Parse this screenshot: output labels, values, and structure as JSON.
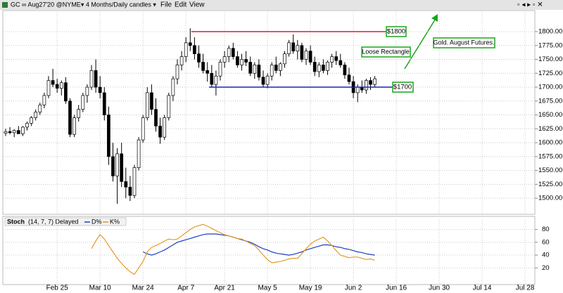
{
  "menu": [
    "File",
    "Edit",
    "View"
  ],
  "chart_data": [
    {
      "type": "candlestick",
      "title": "GC ∞ Aug27'20 @NYME▾ 4 Months/Daily candles ▾",
      "categories": [
        null,
        null,
        null,
        null,
        null,
        null,
        null,
        null,
        null,
        null,
        null,
        null,
        "Feb 25",
        null,
        null,
        null,
        null,
        null,
        null,
        null,
        null,
        null,
        "Mar 10",
        null,
        null,
        null,
        null,
        null,
        null,
        null,
        null,
        null,
        "Mar 24",
        null,
        null,
        null,
        null,
        null,
        null,
        null,
        null,
        null,
        "Apr 7",
        null,
        null,
        null,
        null,
        null,
        null,
        null,
        null,
        "Apr 21",
        null,
        null,
        null,
        null,
        null,
        null,
        null,
        null,
        null,
        "May 5",
        null,
        null,
        null,
        null,
        null,
        null,
        null,
        null,
        null,
        "May 19",
        null,
        null,
        null,
        null,
        null,
        null,
        null,
        null,
        null,
        "Jun 2",
        null,
        null,
        null,
        null,
        null,
        null,
        null,
        null,
        null,
        "Jun 16",
        null,
        null,
        null,
        null,
        null,
        null,
        null,
        null,
        null,
        "Jun 30",
        null,
        null,
        null,
        null,
        null,
        null,
        null,
        null,
        null,
        "Jul 14",
        null,
        null,
        null,
        null,
        null,
        null,
        null,
        null,
        null,
        "Jul 28",
        null,
        null
      ],
      "open": [
        1617,
        1620,
        1618,
        1622,
        1616,
        1628,
        1635,
        1645,
        1655,
        1668,
        1685,
        1712,
        1705,
        1698,
        1708,
        1675,
        1615,
        1645,
        1660,
        1685,
        1700,
        1730,
        1700,
        1690,
        1650,
        1575,
        1540,
        1580,
        1530,
        1520,
        1505,
        1555,
        1605,
        1645,
        1690,
        1660,
        1630,
        1610,
        1645,
        1685,
        1715,
        1740,
        1755,
        1780,
        1775,
        1760,
        1745,
        1730,
        1725,
        1705,
        1720,
        1745,
        1755,
        1770,
        1755,
        1740,
        1750,
        1745,
        1725,
        1740,
        1718,
        1705,
        1720,
        1740,
        1730,
        1742,
        1760,
        1780,
        1765,
        1775,
        1750,
        1765,
        1745,
        1728,
        1740,
        1730,
        1745,
        1755,
        1748,
        1740,
        1722,
        1710,
        1690,
        1700,
        1695,
        1712,
        1705,
        null,
        null,
        null,
        null,
        null,
        null,
        null,
        null,
        null,
        null,
        null,
        null,
        null,
        null,
        null,
        null,
        null,
        null,
        null,
        null,
        null,
        null,
        null,
        null,
        null,
        null,
        null,
        null,
        null,
        null,
        null,
        null,
        null,
        null,
        null,
        null,
        null
      ],
      "high": [
        1625,
        1628,
        1624,
        1630,
        1630,
        1638,
        1648,
        1660,
        1672,
        1690,
        1720,
        1733,
        1715,
        1712,
        1718,
        1680,
        1650,
        1668,
        1690,
        1705,
        1740,
        1750,
        1720,
        1700,
        1665,
        1600,
        1590,
        1600,
        1555,
        1540,
        1560,
        1610,
        1650,
        1700,
        1705,
        1680,
        1645,
        1650,
        1690,
        1720,
        1750,
        1765,
        1790,
        1806,
        1790,
        1775,
        1760,
        1745,
        1740,
        1730,
        1750,
        1765,
        1775,
        1780,
        1765,
        1760,
        1765,
        1755,
        1745,
        1750,
        1730,
        1725,
        1745,
        1755,
        1745,
        1765,
        1785,
        1795,
        1785,
        1780,
        1770,
        1775,
        1755,
        1745,
        1750,
        1748,
        1760,
        1765,
        1760,
        1745,
        1735,
        1720,
        1705,
        1712,
        1715,
        1718,
        1720,
        null,
        null,
        null,
        null,
        null,
        null,
        null,
        null,
        null,
        null,
        null,
        null,
        null,
        null,
        null,
        null,
        null,
        null,
        null,
        null,
        null,
        null,
        null,
        null,
        null,
        null,
        null,
        null,
        null,
        null,
        null,
        null,
        null,
        null,
        null,
        null,
        null
      ],
      "low": [
        1612,
        1615,
        1610,
        1616,
        1612,
        1622,
        1630,
        1640,
        1650,
        1662,
        1680,
        1700,
        1690,
        1685,
        1670,
        1610,
        1610,
        1638,
        1655,
        1672,
        1695,
        1690,
        1680,
        1640,
        1560,
        1530,
        1490,
        1520,
        1500,
        1495,
        1500,
        1550,
        1600,
        1640,
        1650,
        1620,
        1598,
        1605,
        1640,
        1675,
        1705,
        1730,
        1745,
        1765,
        1750,
        1735,
        1725,
        1710,
        1700,
        1685,
        1712,
        1735,
        1745,
        1750,
        1735,
        1730,
        1738,
        1720,
        1715,
        1712,
        1700,
        1698,
        1712,
        1725,
        1720,
        1735,
        1755,
        1760,
        1750,
        1745,
        1740,
        1740,
        1720,
        1718,
        1725,
        1722,
        1735,
        1740,
        1735,
        1715,
        1705,
        1680,
        1673,
        1690,
        1688,
        1695,
        1700,
        null,
        null,
        null,
        null,
        null,
        null,
        null,
        null,
        null,
        null,
        null,
        null,
        null,
        null,
        null,
        null,
        null,
        null,
        null,
        null,
        null,
        null,
        null,
        null,
        null,
        null,
        null,
        null,
        null,
        null,
        null,
        null,
        null,
        null,
        null,
        null,
        null
      ],
      "close": [
        1620,
        1618,
        1622,
        1616,
        1628,
        1635,
        1645,
        1655,
        1668,
        1685,
        1712,
        1705,
        1698,
        1708,
        1675,
        1615,
        1645,
        1660,
        1685,
        1700,
        1730,
        1700,
        1690,
        1650,
        1575,
        1540,
        1580,
        1530,
        1520,
        1505,
        1555,
        1605,
        1645,
        1690,
        1660,
        1630,
        1610,
        1645,
        1685,
        1715,
        1740,
        1755,
        1780,
        1775,
        1760,
        1745,
        1730,
        1725,
        1705,
        1720,
        1745,
        1755,
        1770,
        1755,
        1740,
        1750,
        1745,
        1725,
        1740,
        1718,
        1705,
        1720,
        1740,
        1730,
        1742,
        1760,
        1780,
        1765,
        1775,
        1750,
        1765,
        1745,
        1728,
        1740,
        1730,
        1745,
        1755,
        1748,
        1740,
        1722,
        1710,
        1690,
        1700,
        1695,
        1712,
        1705,
        1715,
        null,
        null,
        null,
        null,
        null,
        null,
        null,
        null,
        null,
        null,
        null,
        null,
        null,
        null,
        null,
        null,
        null,
        null,
        null,
        null,
        null,
        null,
        null,
        null,
        null,
        null,
        null,
        null,
        null,
        null,
        null,
        null,
        null,
        null,
        null,
        null,
        null
      ],
      "ylim": [
        1471,
        1838
      ],
      "yticks": [
        {
          "value": 1500,
          "label": "1500.00"
        },
        {
          "value": 1525,
          "label": "1525.00"
        },
        {
          "value": 1550,
          "label": "1550.00"
        },
        {
          "value": 1575,
          "label": "1575.00"
        },
        {
          "value": 1600,
          "label": "1600.00"
        },
        {
          "value": 1625,
          "label": "1625.00"
        },
        {
          "value": 1650,
          "label": "1650.00"
        },
        {
          "value": 1675,
          "label": "1675.00"
        },
        {
          "value": 1700,
          "label": "1700.00"
        },
        {
          "value": 1725,
          "label": "1725.00"
        },
        {
          "value": 1750,
          "label": "1750.00"
        },
        {
          "value": 1775,
          "label": "1775.00"
        },
        {
          "value": 1800,
          "label": "1800.00"
        }
      ],
      "grid": true,
      "annotations": [
        {
          "text": "$1800",
          "value": 1800,
          "color": "#d0203a"
        },
        {
          "text": "$1700",
          "value": 1700,
          "color": "#1f1fbf"
        },
        {
          "text": "Loose Rectangle"
        },
        {
          "text": "Gold. August Futures."
        }
      ]
    },
    {
      "type": "line",
      "title": "Stoch",
      "subtitle": "(14, 7, 7) Delayed",
      "series": [
        {
          "name": "D%",
          "color": "#1f3fbf",
          "values": [
            null,
            null,
            null,
            null,
            null,
            null,
            null,
            null,
            null,
            null,
            null,
            null,
            null,
            null,
            null,
            null,
            null,
            null,
            null,
            null,
            null,
            null,
            null,
            null,
            null,
            null,
            null,
            null,
            null,
            null,
            null,
            null,
            45,
            42,
            40,
            42,
            45,
            48,
            52,
            56,
            60,
            62,
            64,
            66,
            68,
            70,
            72,
            73,
            73,
            73,
            72,
            71,
            70,
            68,
            66,
            64,
            62,
            60,
            57,
            53,
            50,
            48,
            45,
            43,
            42,
            41,
            40,
            41,
            43,
            45,
            48,
            50,
            52,
            54,
            56,
            56,
            55,
            53,
            52,
            50,
            49,
            47,
            45,
            44,
            42,
            41,
            40,
            null,
            null,
            null,
            null,
            null,
            null,
            null,
            null,
            null,
            null,
            null,
            null,
            null,
            null,
            null,
            null,
            null,
            null,
            null,
            null,
            null,
            null,
            null,
            null,
            null,
            null,
            null,
            null,
            null,
            null,
            null,
            null,
            null,
            null,
            null,
            null,
            null
          ]
        },
        {
          "name": "K%",
          "color": "#e39b2b",
          "values": [
            null,
            null,
            null,
            null,
            null,
            null,
            null,
            null,
            null,
            null,
            null,
            null,
            null,
            null,
            null,
            null,
            null,
            null,
            null,
            null,
            50,
            62,
            72,
            65,
            55,
            45,
            35,
            27,
            20,
            14,
            10,
            20,
            30,
            45,
            52,
            55,
            58,
            62,
            65,
            64,
            65,
            70,
            75,
            80,
            84,
            86,
            88,
            85,
            82,
            78,
            75,
            72,
            70,
            68,
            66,
            65,
            62,
            58,
            55,
            48,
            40,
            33,
            28,
            29,
            30,
            32,
            34,
            35,
            35,
            42,
            50,
            57,
            62,
            65,
            68,
            62,
            55,
            47,
            40,
            38,
            36,
            37,
            37,
            35,
            33,
            34,
            32,
            null,
            null,
            null,
            null,
            null,
            null,
            null,
            null,
            null,
            null,
            null,
            null,
            null,
            null,
            null,
            null,
            null,
            null,
            null,
            null,
            null,
            null,
            null,
            null,
            null,
            null,
            null,
            null,
            null,
            null,
            null,
            null,
            null,
            null,
            null,
            null,
            null
          ]
        }
      ],
      "ylim": [
        -6,
        96
      ],
      "yticks": [
        20,
        40,
        60,
        80
      ],
      "grid": true
    }
  ]
}
